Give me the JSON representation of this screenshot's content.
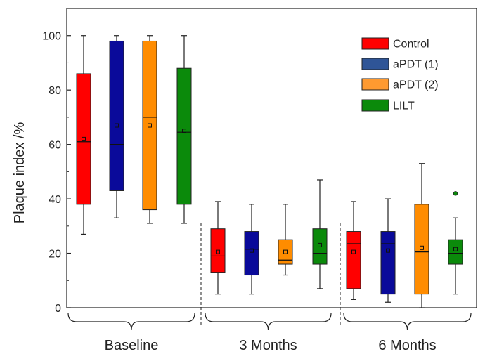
{
  "chart_data": {
    "type": "box",
    "ylabel": "Plaque index /%",
    "ylim": [
      0,
      110
    ],
    "yticks": [
      0,
      20,
      40,
      60,
      80,
      100
    ],
    "grid": false,
    "legend_position": "top-right",
    "legend_marker_position": "center",
    "groups": [
      "Baseline",
      "3 Months",
      "6 Months"
    ],
    "series": [
      {
        "name": "Control",
        "color": "#ff0000"
      },
      {
        "name": "aPDT (1)",
        "color": "#0a0a9a",
        "legend_color": "#2f5597"
      },
      {
        "name": "aPDT (2)",
        "color": "#ff8c00",
        "legend_color": "#ff9a30"
      },
      {
        "name": "LILT",
        "color": "#0b8a0b"
      }
    ],
    "boxes": [
      {
        "group": "Baseline",
        "series": "Control",
        "whisker_low": 27,
        "q1": 38,
        "median": 61,
        "q3": 86,
        "whisker_high": 100,
        "mean": 62
      },
      {
        "group": "Baseline",
        "series": "aPDT (1)",
        "whisker_low": 33,
        "q1": 43,
        "median": 60,
        "q3": 98,
        "whisker_high": 100,
        "mean": 67
      },
      {
        "group": "Baseline",
        "series": "aPDT (2)",
        "whisker_low": 31,
        "q1": 36,
        "median": 70,
        "q3": 98,
        "whisker_high": 100,
        "mean": 67
      },
      {
        "group": "Baseline",
        "series": "LILT",
        "whisker_low": 31,
        "q1": 38,
        "median": 64.5,
        "q3": 88,
        "whisker_high": 100,
        "mean": 65
      },
      {
        "group": "3 Months",
        "series": "Control",
        "whisker_low": 5,
        "q1": 13,
        "median": 19,
        "q3": 29,
        "whisker_high": 39,
        "mean": 20.5
      },
      {
        "group": "3 Months",
        "series": "aPDT (1)",
        "whisker_low": 5,
        "q1": 12,
        "median": 21.5,
        "q3": 28,
        "whisker_high": 38,
        "mean": 21
      },
      {
        "group": "3 Months",
        "series": "aPDT (2)",
        "whisker_low": 12,
        "q1": 16,
        "median": 17.5,
        "q3": 25,
        "whisker_high": 38,
        "mean": 20.5
      },
      {
        "group": "3 Months",
        "series": "LILT",
        "whisker_low": 7,
        "q1": 16,
        "median": 20,
        "q3": 29,
        "whisker_high": 47,
        "mean": 23
      },
      {
        "group": "6 Months",
        "series": "Control",
        "whisker_low": 3,
        "q1": 7,
        "median": 23.5,
        "q3": 28,
        "whisker_high": 39,
        "mean": 20.5
      },
      {
        "group": "6 Months",
        "series": "aPDT (1)",
        "whisker_low": 2,
        "q1": 5,
        "median": 23.5,
        "q3": 28,
        "whisker_high": 40,
        "mean": 21
      },
      {
        "group": "6 Months",
        "series": "aPDT (2)",
        "whisker_low": 0,
        "q1": 5,
        "median": 20.5,
        "q3": 38,
        "whisker_high": 53,
        "mean": 22
      },
      {
        "group": "6 Months",
        "series": "LILT",
        "whisker_low": 5,
        "q1": 16,
        "median": 20,
        "q3": 25,
        "whisker_high": 33,
        "mean": 21.5,
        "outliers": [
          42
        ]
      }
    ]
  }
}
